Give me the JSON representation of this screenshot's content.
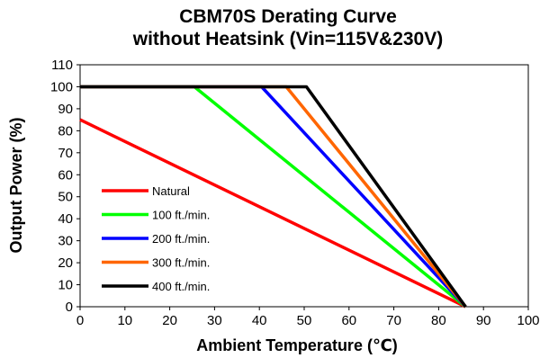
{
  "chart_data": {
    "type": "line",
    "title": [
      "CBM70S  Derating Curve",
      "without Heatsink (Vin=115V&230V)"
    ],
    "xlabel": "Ambient  Temperature (℃)",
    "ylabel": "Output  Power (%)",
    "xlim": [
      0,
      100
    ],
    "ylim": [
      0,
      110
    ],
    "x_ticks": [
      0,
      10,
      20,
      30,
      40,
      50,
      60,
      70,
      80,
      90,
      100
    ],
    "y_ticks": [
      0,
      10,
      20,
      30,
      40,
      50,
      60,
      70,
      80,
      90,
      100,
      110
    ],
    "grid": false,
    "legend_position": "lower-left",
    "series": [
      {
        "name": "Natural",
        "color": "#ff0000",
        "x": [
          0,
          86
        ],
        "y": [
          85,
          0
        ]
      },
      {
        "name": "100 ft./min.",
        "color": "#00ff00",
        "x": [
          0,
          25.5,
          86
        ],
        "y": [
          100,
          100,
          0
        ]
      },
      {
        "name": "200 ft./min.",
        "color": "#0000ff",
        "x": [
          0,
          40.5,
          86
        ],
        "y": [
          100,
          100,
          0
        ]
      },
      {
        "name": "300 ft./min.",
        "color": "#ff6600",
        "x": [
          0,
          46,
          86
        ],
        "y": [
          100,
          100,
          0
        ]
      },
      {
        "name": "400 ft./min.",
        "color": "#000000",
        "x": [
          0,
          50.5,
          86
        ],
        "y": [
          100,
          100,
          0
        ]
      }
    ]
  }
}
